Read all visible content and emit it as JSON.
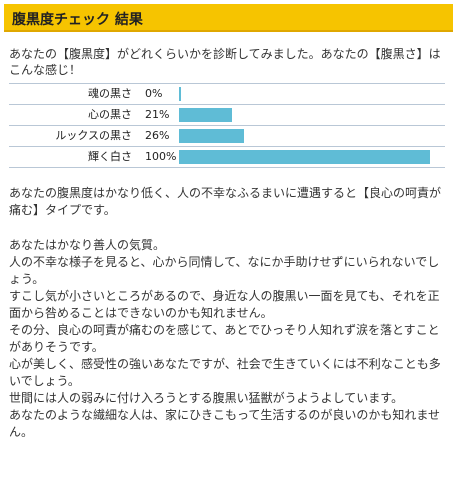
{
  "header": {
    "title": "腹黒度チェック 結果",
    "color": "#f6c400"
  },
  "intro": "あなたの【腹黒度】がどれくらいかを診断してみました。あなたの【腹黒さ】はこんな感じ！",
  "results": [
    {
      "label": "魂の黒さ",
      "percent_text": "0%",
      "value": 0
    },
    {
      "label": "心の黒さ",
      "percent_text": "21%",
      "value": 21
    },
    {
      "label": "ルックスの黒さ",
      "percent_text": "26%",
      "value": 26
    },
    {
      "label": "輝く白さ",
      "percent_text": "100%",
      "value": 100
    }
  ],
  "bar_color": "#5fbcd6",
  "summary": "あなたの腹黒度はかなり低く、人の不幸なふるまいに遭遇すると【良心の呵責が痛む】タイプです。",
  "detail": [
    "あなたはかなり善人の気質。",
    "人の不幸な様子を見ると、心から同情して、なにか手助けせずにいられないでしょう。",
    "すこし気が小さいところがあるので、身近な人の腹黒い一面を見ても、それを正面から咎めることはできないのかも知れません。",
    "その分、良心の呵責が痛むのを感じて、あとでひっそり人知れず涙を落とすことがありそうです。",
    "心が美しく、感受性の強いあなたですが、社会で生きていくには不利なことも多いでしょう。",
    "世間には人の弱みに付け入ろうとする腹黒い猛獣がうようよしています。",
    "あなたのような繊細な人は、家にひきこもって生活するのが良いのかも知れません。"
  ]
}
